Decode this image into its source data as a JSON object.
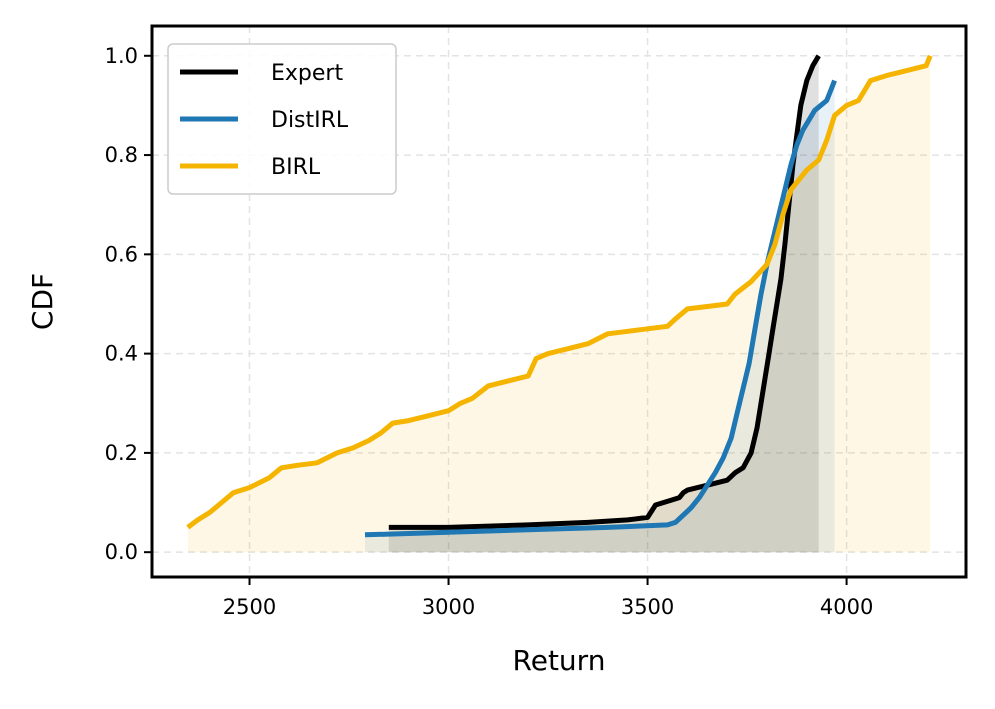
{
  "chart_data": {
    "type": "line",
    "title": "",
    "xlabel": "Return",
    "ylabel": "CDF",
    "xlim": [
      2255,
      4300
    ],
    "ylim": [
      -0.05,
      1.06
    ],
    "xticks": [
      2500,
      3000,
      3500,
      4000
    ],
    "xtick_labels": [
      "2500",
      "3000",
      "3500",
      "4000"
    ],
    "yticks": [
      0.0,
      0.2,
      0.4,
      0.6,
      0.8,
      1.0
    ],
    "ytick_labels": [
      "0.0",
      "0.2",
      "0.4",
      "0.6",
      "0.8",
      "1.0"
    ],
    "grid": true,
    "legend_position": "upper-left",
    "series": [
      {
        "name": "Expert",
        "color": "#000000",
        "fill": true,
        "x": [
          2850,
          3000,
          3200,
          3350,
          3450,
          3500,
          3520,
          3560,
          3580,
          3590,
          3600,
          3650,
          3700,
          3720,
          3740,
          3760,
          3775,
          3785,
          3795,
          3805,
          3815,
          3825,
          3835,
          3845,
          3855,
          3865,
          3875,
          3885,
          3900,
          3915,
          3930
        ],
        "y": [
          0.05,
          0.05,
          0.055,
          0.06,
          0.065,
          0.07,
          0.095,
          0.105,
          0.11,
          0.12,
          0.125,
          0.135,
          0.145,
          0.16,
          0.17,
          0.2,
          0.25,
          0.3,
          0.35,
          0.4,
          0.45,
          0.5,
          0.55,
          0.62,
          0.7,
          0.78,
          0.84,
          0.9,
          0.95,
          0.98,
          1.0
        ]
      },
      {
        "name": "DistIRL",
        "color": "#1f77b4",
        "fill": true,
        "x": [
          2790,
          3000,
          3200,
          3400,
          3550,
          3570,
          3590,
          3610,
          3630,
          3650,
          3670,
          3690,
          3710,
          3725,
          3740,
          3755,
          3770,
          3785,
          3800,
          3815,
          3830,
          3845,
          3860,
          3875,
          3890,
          3905,
          3920,
          3935,
          3950,
          3960,
          3970
        ],
        "y": [
          0.035,
          0.04,
          0.045,
          0.05,
          0.055,
          0.06,
          0.075,
          0.09,
          0.11,
          0.135,
          0.16,
          0.19,
          0.23,
          0.28,
          0.33,
          0.38,
          0.45,
          0.52,
          0.58,
          0.63,
          0.68,
          0.73,
          0.78,
          0.82,
          0.85,
          0.87,
          0.89,
          0.9,
          0.91,
          0.93,
          0.95
        ]
      },
      {
        "name": "BIRL",
        "color": "#f5b400",
        "fill": true,
        "x": [
          2345,
          2370,
          2400,
          2430,
          2460,
          2500,
          2550,
          2580,
          2620,
          2670,
          2720,
          2760,
          2800,
          2830,
          2860,
          2900,
          2950,
          3000,
          3030,
          3060,
          3100,
          3150,
          3200,
          3220,
          3250,
          3300,
          3350,
          3400,
          3450,
          3500,
          3550,
          3570,
          3600,
          3650,
          3700,
          3720,
          3760,
          3800,
          3820,
          3840,
          3860,
          3880,
          3900,
          3930,
          3950,
          3970,
          4000,
          4030,
          4060,
          4100,
          4150,
          4200,
          4210
        ],
        "y": [
          0.05,
          0.065,
          0.08,
          0.1,
          0.12,
          0.13,
          0.15,
          0.17,
          0.175,
          0.18,
          0.2,
          0.21,
          0.225,
          0.24,
          0.26,
          0.265,
          0.275,
          0.285,
          0.3,
          0.31,
          0.335,
          0.345,
          0.355,
          0.39,
          0.4,
          0.41,
          0.42,
          0.44,
          0.445,
          0.45,
          0.455,
          0.47,
          0.49,
          0.495,
          0.5,
          0.52,
          0.545,
          0.58,
          0.62,
          0.68,
          0.73,
          0.75,
          0.77,
          0.79,
          0.83,
          0.88,
          0.9,
          0.91,
          0.95,
          0.96,
          0.97,
          0.98,
          1.0
        ]
      }
    ]
  }
}
